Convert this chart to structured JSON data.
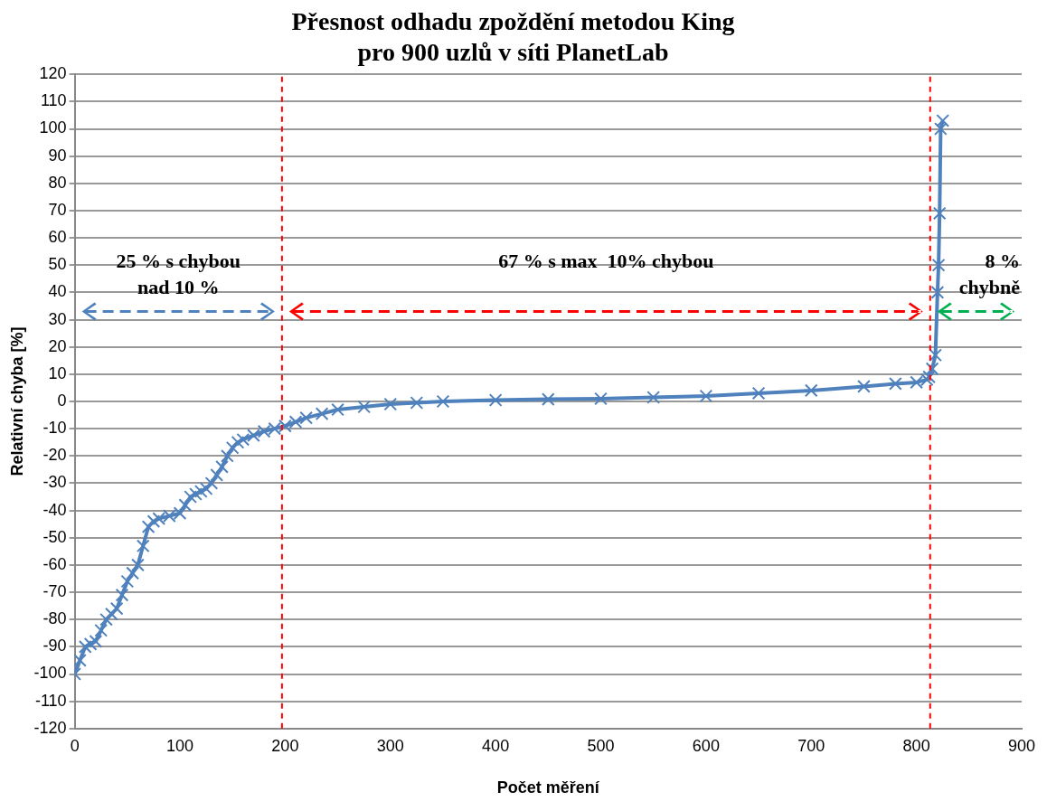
{
  "chart_data": {
    "type": "line",
    "title": "Přesnost odhadu zpoždění metodou King\npro 900 uzlů v síti PlanetLab",
    "xlabel": "Počet měření",
    "ylabel": "Relativní chyba [%]",
    "x": [
      0,
      5,
      10,
      15,
      20,
      25,
      30,
      35,
      40,
      45,
      50,
      55,
      60,
      65,
      70,
      75,
      80,
      90,
      100,
      105,
      110,
      115,
      120,
      125,
      130,
      135,
      140,
      145,
      150,
      155,
      160,
      170,
      180,
      190,
      200,
      210,
      220,
      235,
      250,
      275,
      300,
      325,
      350,
      400,
      450,
      500,
      550,
      600,
      650,
      700,
      750,
      780,
      800,
      810,
      812,
      815,
      818,
      820,
      821,
      822,
      823,
      825
    ],
    "series": [
      {
        "color": "#4f81bd",
        "values": [
          -100,
          -95,
          -90,
          -89,
          -88,
          -84,
          -80,
          -78,
          -76,
          -71,
          -66,
          -63,
          -60,
          -53,
          -46,
          -44,
          -43,
          -42,
          -41,
          -38,
          -35,
          -34,
          -33,
          -32,
          -30,
          -27,
          -24,
          -20,
          -17,
          -15,
          -14,
          -12.5,
          -11,
          -10,
          -9,
          -7.5,
          -6,
          -4.5,
          -3,
          -2,
          -1,
          -0.5,
          0,
          0.5,
          0.8,
          1,
          1.5,
          2,
          3,
          4,
          5.5,
          6.5,
          7,
          8,
          9,
          12,
          17,
          40,
          50,
          69,
          100,
          103
        ]
      }
    ],
    "xlim": [
      0,
      900
    ],
    "xticks": [
      0,
      100,
      200,
      300,
      400,
      500,
      600,
      700,
      800,
      900
    ],
    "ylim": [
      -120,
      120
    ],
    "yticks": [
      -120,
      -110,
      -100,
      -90,
      -80,
      -70,
      -60,
      -50,
      -40,
      -30,
      -20,
      -10,
      0,
      10,
      20,
      30,
      40,
      50,
      60,
      70,
      80,
      90,
      100,
      110,
      120
    ],
    "grid": "y",
    "legend": false,
    "marker": "cross",
    "line_style": "solid",
    "ref_lines": [
      {
        "axis": "x",
        "value": 197,
        "color": "#ff0000",
        "line_style": "dashed"
      },
      {
        "axis": "x",
        "value": 813,
        "color": "#ff0000",
        "line_style": "dashed"
      }
    ],
    "annotations": [
      "25 % s chybou\nnad 10 %",
      "67 % s max  10% chybou",
      "8 %\nchybně"
    ]
  }
}
